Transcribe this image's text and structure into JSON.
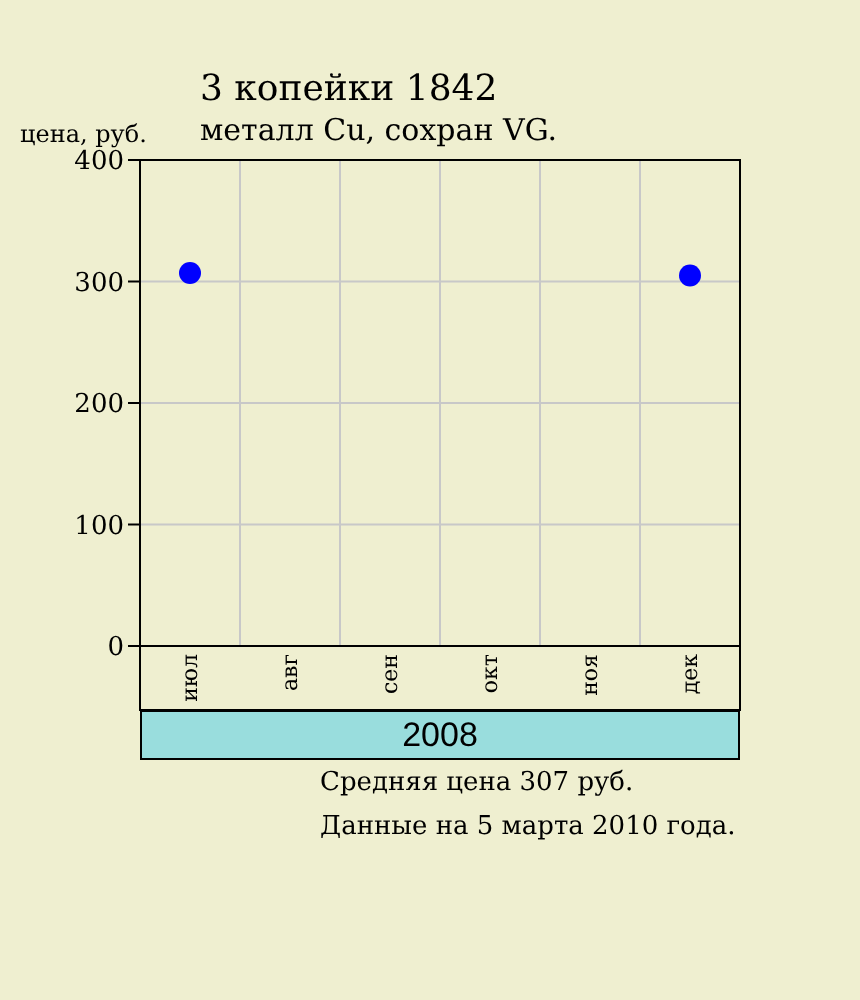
{
  "chart_data": {
    "type": "scatter",
    "title": "3 копейки 1842",
    "subtitle": "металл Cu, сохран VG.",
    "ylabel": "цена, руб.",
    "xlabel": "2008",
    "categories": [
      "июл",
      "авг",
      "сен",
      "окт",
      "ноя",
      "дек"
    ],
    "series": [
      {
        "color": "#0000ff",
        "values": [
          307,
          null,
          null,
          null,
          null,
          305
        ]
      }
    ],
    "ylim": [
      0,
      400
    ],
    "yticks": [
      0,
      100,
      200,
      300,
      400
    ],
    "grid": true,
    "marker": "circle",
    "annotations": [
      "Средняя цена 307 руб.",
      "Данные на 5 марта 2010 года."
    ]
  }
}
